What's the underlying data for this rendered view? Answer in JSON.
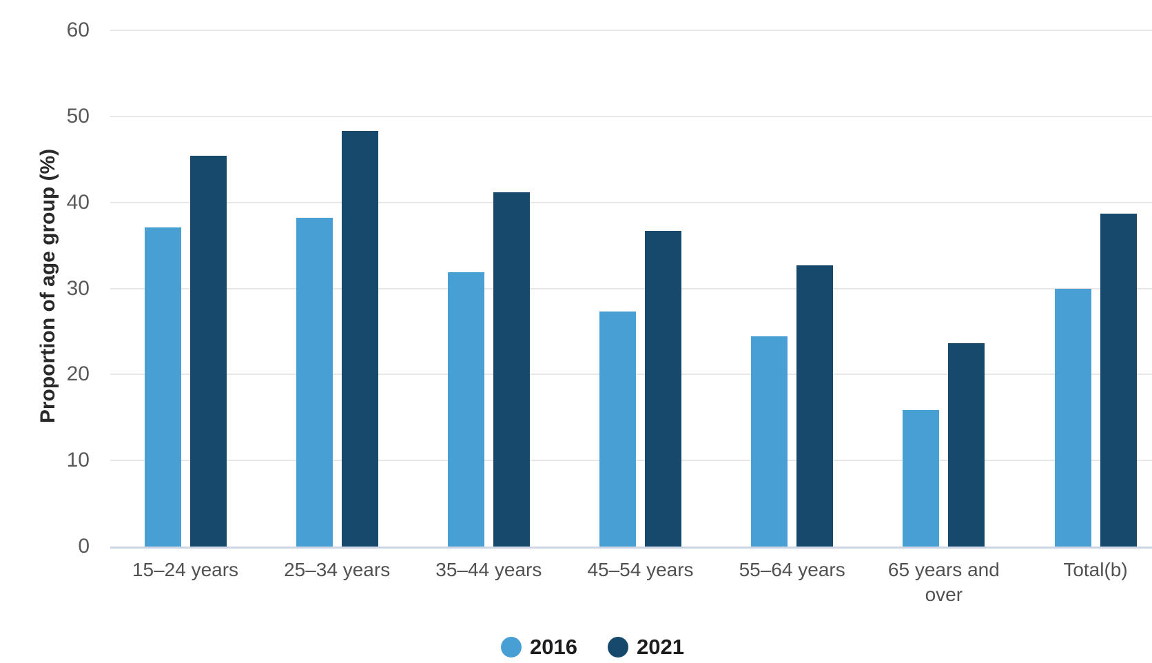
{
  "chart_data": {
    "type": "bar",
    "title": "",
    "ylabel": "Proportion of age group (%)",
    "xlabel": "",
    "ylim": [
      0,
      60
    ],
    "yticks": [
      0,
      10,
      20,
      30,
      40,
      50,
      60
    ],
    "grid": true,
    "legend_position": "bottom",
    "background": "#ffffff",
    "categories": [
      "15–24 years",
      "25–34 years",
      "35–44 years",
      "45–54 years",
      "55–64 years",
      "65 years and over",
      "Total(b)"
    ],
    "series": [
      {
        "name": "2016",
        "color": "#479fd3",
        "values": [
          37.1,
          38.2,
          31.9,
          27.3,
          24.4,
          15.9,
          30.0
        ]
      },
      {
        "name": "2021",
        "color": "#17496c",
        "values": [
          45.4,
          48.3,
          41.2,
          36.7,
          32.7,
          23.6,
          38.7
        ]
      }
    ],
    "axis_colors": {
      "gridline": "#e7e7e7",
      "zero_line": "#ccd6e4",
      "tick_label": "#59595b",
      "category_label": "#515154",
      "axis_title": "#29292b",
      "legend_text": "#1d1d1f"
    }
  }
}
